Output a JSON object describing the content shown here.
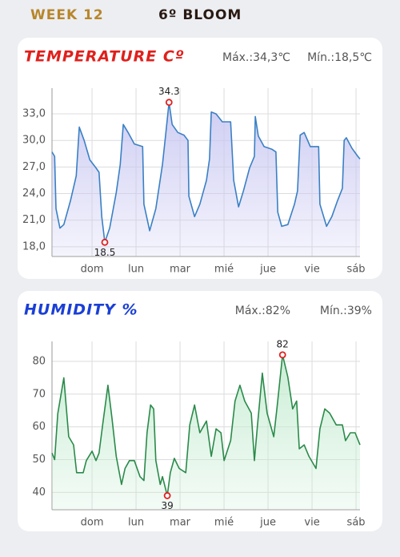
{
  "header": {
    "week": "WEEK 12",
    "stage": "6º BLOOM"
  },
  "chart_data": [
    {
      "type": "line",
      "title": "TEMPERATURE Cº",
      "annotations": [
        "Máx.:34,3℃",
        "Mín.:18,5℃"
      ],
      "title_color": "#e0201c",
      "color": "#3a80c4",
      "fill_color": "#c9c8f2",
      "grid": true,
      "xlim": [
        -0.91,
        6.09
      ],
      "xticks": [
        {
          "value": 0,
          "label": "dom"
        },
        {
          "value": 1,
          "label": "lun"
        },
        {
          "value": 2,
          "label": "mar"
        },
        {
          "value": 3,
          "label": "mié"
        },
        {
          "value": 4,
          "label": "jue"
        },
        {
          "value": 5,
          "label": "vie"
        },
        {
          "value": 6,
          "label": "sáb"
        }
      ],
      "ylim": [
        16.9,
        35.9
      ],
      "yticks": [
        {
          "value": 18,
          "label": "18,0"
        },
        {
          "value": 21,
          "label": "21,0"
        },
        {
          "value": 24,
          "label": "24,0"
        },
        {
          "value": 27,
          "label": "27,0"
        },
        {
          "value": 30,
          "label": "30,0"
        },
        {
          "value": 33,
          "label": "33,0"
        }
      ],
      "x": [
        -0.91,
        -0.85,
        -0.82,
        -0.73,
        -0.64,
        -0.49,
        -0.36,
        -0.29,
        -0.18,
        -0.05,
        0.09,
        0.16,
        0.22,
        0.29,
        0.4,
        0.55,
        0.64,
        0.71,
        0.82,
        0.96,
        1.15,
        1.18,
        1.31,
        1.45,
        1.6,
        1.67,
        1.75,
        1.82,
        1.95,
        2.09,
        2.18,
        2.2,
        2.33,
        2.45,
        2.6,
        2.67,
        2.71,
        2.82,
        2.96,
        3.15,
        3.22,
        3.33,
        3.44,
        3.58,
        3.69,
        3.71,
        3.78,
        3.91,
        4.09,
        4.18,
        4.22,
        4.31,
        4.45,
        4.6,
        4.67,
        4.73,
        4.82,
        4.96,
        5.15,
        5.18,
        5.33,
        5.45,
        5.58,
        5.69,
        5.73,
        5.78,
        5.91,
        6.04,
        6.09
      ],
      "values": [
        28.7,
        28.2,
        22.3,
        20.1,
        20.5,
        23.2,
        26.0,
        31.5,
        30.0,
        27.8,
        26.9,
        26.4,
        21.4,
        18.5,
        20.1,
        24.1,
        27.3,
        31.8,
        30.9,
        29.6,
        29.3,
        22.8,
        19.8,
        22.3,
        27.3,
        30.5,
        34.3,
        31.8,
        30.9,
        30.6,
        30.0,
        23.7,
        21.4,
        22.8,
        25.5,
        27.9,
        33.2,
        33.0,
        32.1,
        32.1,
        25.5,
        22.5,
        24.3,
        26.9,
        28.2,
        32.7,
        30.5,
        29.3,
        29.0,
        28.7,
        21.9,
        20.3,
        20.5,
        22.8,
        24.3,
        30.6,
        30.9,
        29.3,
        29.3,
        22.8,
        20.3,
        21.4,
        23.2,
        24.6,
        30.0,
        30.3,
        29.1,
        28.2,
        27.9
      ]
    },
    {
      "type": "line",
      "title": "HUMIDITY %",
      "annotations": [
        "Máx.:82%",
        "Mín.:39%"
      ],
      "title_color": "#1a3fd6",
      "color": "#2a8a4a",
      "fill_color": "#c6ecd2",
      "grid": true,
      "xlim": [
        -0.91,
        6.09
      ],
      "xticks": [
        {
          "value": 0,
          "label": "dom"
        },
        {
          "value": 1,
          "label": "lun"
        },
        {
          "value": 2,
          "label": "mar"
        },
        {
          "value": 3,
          "label": "mié"
        },
        {
          "value": 4,
          "label": "jue"
        },
        {
          "value": 5,
          "label": "vie"
        },
        {
          "value": 6,
          "label": "sáb"
        }
      ],
      "ylim": [
        34.7,
        86.1
      ],
      "yticks": [
        40,
        50,
        60,
        70,
        80
      ],
      "x": [
        -0.91,
        -0.85,
        -0.78,
        -0.64,
        -0.53,
        -0.42,
        -0.35,
        -0.2,
        -0.13,
        0,
        0.09,
        0.16,
        0.24,
        0.36,
        0.45,
        0.55,
        0.67,
        0.75,
        0.85,
        0.96,
        1.09,
        1.18,
        1.25,
        1.33,
        1.4,
        1.45,
        1.55,
        1.6,
        1.71,
        1.78,
        1.87,
        1.98,
        2.13,
        2.22,
        2.33,
        2.45,
        2.6,
        2.71,
        2.82,
        2.93,
        3,
        3.15,
        3.25,
        3.36,
        3.47,
        3.62,
        3.69,
        3.76,
        3.87,
        3.98,
        4.13,
        4.2,
        4.33,
        4.45,
        4.56,
        4.65,
        4.71,
        4.82,
        4.93,
        5.09,
        5.18,
        5.29,
        5.4,
        5.55,
        5.69,
        5.76,
        5.87,
        5.98,
        6.09
      ],
      "values": [
        52,
        50,
        64,
        75,
        57,
        54.5,
        46,
        46,
        49.7,
        52.6,
        49.7,
        52,
        60.6,
        72.7,
        63,
        51,
        42.4,
        47.3,
        49.7,
        49.7,
        44.8,
        43.6,
        58.2,
        66.7,
        65.5,
        49.7,
        42.4,
        44.8,
        39,
        46,
        50.4,
        47.3,
        46,
        60.6,
        66.7,
        58.2,
        61.8,
        51,
        59.4,
        58.2,
        49.7,
        55.8,
        67.9,
        72.7,
        67.9,
        64.2,
        49.7,
        60.6,
        76.4,
        64.2,
        57,
        65.5,
        82,
        75.2,
        65.5,
        67.9,
        53.3,
        54.5,
        51,
        47.3,
        59.4,
        65.5,
        64.2,
        60.6,
        60.6,
        55.8,
        58.2,
        58.2,
        54.5
      ]
    }
  ]
}
